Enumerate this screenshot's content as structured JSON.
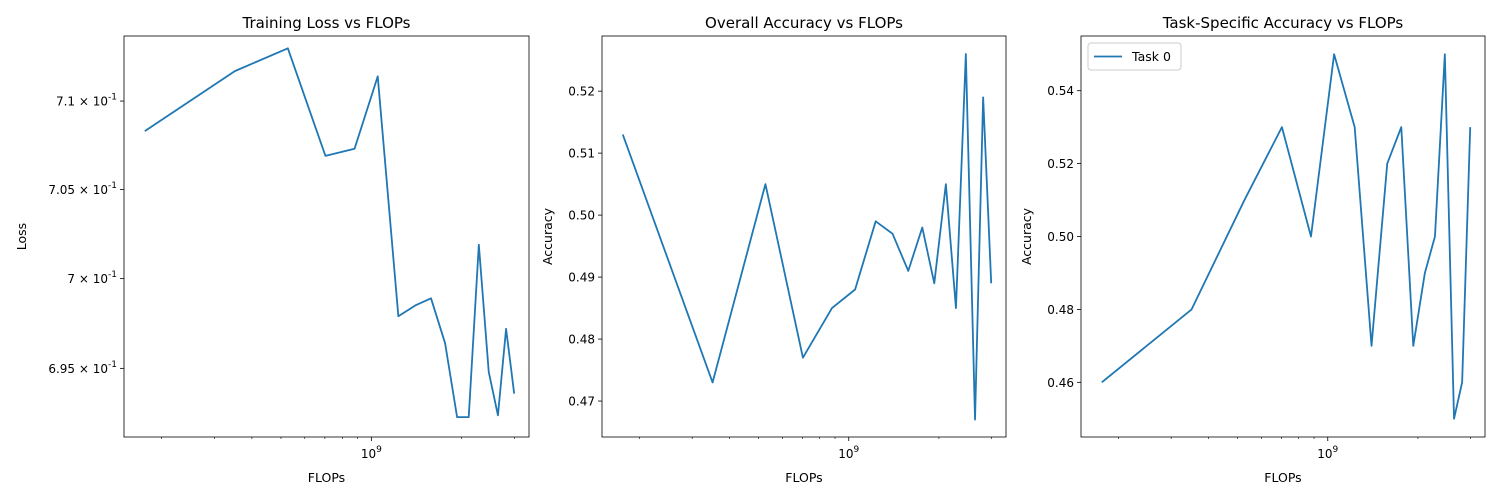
{
  "chart_data": [
    {
      "type": "line",
      "title": "Training Loss vs FLOPs",
      "xlabel": "FLOPs",
      "ylabel": "Loss",
      "xscale": "log",
      "yscale": "log",
      "xlim": [
        150000000,
        3350000000
      ],
      "ylim": [
        0.6912,
        0.7137
      ],
      "xticks": [
        {
          "value": 1000000000,
          "label": "10^9"
        }
      ],
      "yticks": [
        {
          "value": 0.695,
          "label": "6.95 × 10^-1"
        },
        {
          "value": 0.7,
          "label": "7 × 10^-1"
        },
        {
          "value": 0.705,
          "label": "7.05 × 10^-1"
        },
        {
          "value": 0.71,
          "label": "7.1 × 10^-1"
        }
      ],
      "grid": false,
      "series": [
        {
          "color": "#1f77b4",
          "x": [
            176000000,
            351000000,
            527000000,
            703000000,
            879000000,
            1050000000,
            1230000000,
            1400000000,
            1580000000,
            1760000000,
            1930000000,
            2110000000,
            2280000000,
            2460000000,
            2640000000,
            2810000000,
            2990000000
          ],
          "values": [
            0.7083,
            0.7117,
            0.713,
            0.7069,
            0.7073,
            0.7114,
            0.6979,
            0.6985,
            0.6989,
            0.6964,
            0.6923,
            0.6923,
            0.7019,
            0.6948,
            0.6924,
            0.6972,
            0.6936
          ]
        }
      ]
    },
    {
      "type": "line",
      "title": "Overall Accuracy vs FLOPs",
      "xlabel": "FLOPs",
      "ylabel": "Accuracy",
      "xscale": "log",
      "xlim": [
        150000000,
        3350000000
      ],
      "ylim": [
        0.4642,
        0.5289
      ],
      "xticks": [
        {
          "value": 1000000000,
          "label": "10^9"
        }
      ],
      "yticks": [
        {
          "value": 0.47,
          "label": "0.47"
        },
        {
          "value": 0.48,
          "label": "0.48"
        },
        {
          "value": 0.49,
          "label": "0.49"
        },
        {
          "value": 0.5,
          "label": "0.50"
        },
        {
          "value": 0.51,
          "label": "0.51"
        },
        {
          "value": 0.52,
          "label": "0.52"
        }
      ],
      "grid": false,
      "series": [
        {
          "color": "#1f77b4",
          "x": [
            176000000,
            351000000,
            527000000,
            703000000,
            879000000,
            1050000000,
            1230000000,
            1400000000,
            1580000000,
            1760000000,
            1930000000,
            2110000000,
            2280000000,
            2460000000,
            2640000000,
            2810000000,
            2990000000
          ],
          "values": [
            0.513,
            0.473,
            0.505,
            0.477,
            0.485,
            0.488,
            0.499,
            0.497,
            0.491,
            0.498,
            0.489,
            0.505,
            0.485,
            0.526,
            0.467,
            0.519,
            0.489
          ]
        }
      ]
    },
    {
      "type": "line",
      "title": "Task-Specific Accuracy vs FLOPs",
      "xlabel": "FLOPs",
      "ylabel": "Accuracy",
      "xscale": "log",
      "xlim": [
        150000000,
        3350000000
      ],
      "ylim": [
        0.445,
        0.555
      ],
      "xticks": [
        {
          "value": 1000000000,
          "label": "10^9"
        }
      ],
      "yticks": [
        {
          "value": 0.46,
          "label": "0.46"
        },
        {
          "value": 0.48,
          "label": "0.48"
        },
        {
          "value": 0.5,
          "label": "0.50"
        },
        {
          "value": 0.52,
          "label": "0.52"
        },
        {
          "value": 0.54,
          "label": "0.54"
        }
      ],
      "grid": false,
      "legend": "top-left",
      "series": [
        {
          "name": "Task 0",
          "color": "#1f77b4",
          "x": [
            176000000,
            351000000,
            527000000,
            703000000,
            879000000,
            1050000000,
            1230000000,
            1400000000,
            1580000000,
            1760000000,
            1930000000,
            2110000000,
            2280000000,
            2460000000,
            2640000000,
            2810000000,
            2990000000
          ],
          "values": [
            0.46,
            0.48,
            0.51,
            0.53,
            0.5,
            0.55,
            0.53,
            0.47,
            0.52,
            0.53,
            0.47,
            0.49,
            0.5,
            0.55,
            0.45,
            0.46,
            0.53
          ]
        }
      ]
    }
  ]
}
